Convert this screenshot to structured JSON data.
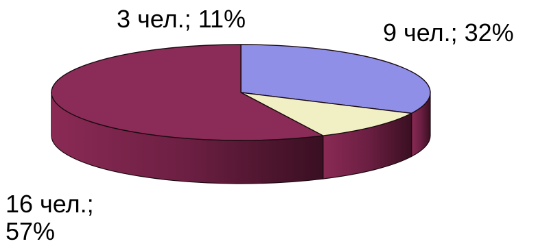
{
  "chart_data": {
    "type": "pie",
    "style": "3d-exploded-none",
    "title": "",
    "slices": [
      {
        "label": "9 чел.; 32%",
        "lines": [
          "9 чел.; 32%"
        ],
        "value": 9,
        "percent": 32,
        "color": "#8f8fe8"
      },
      {
        "label": "3 чел.; 11%",
        "lines": [
          "3 чел.; 11%"
        ],
        "value": 3,
        "percent": 11,
        "color": "#f1efc4"
      },
      {
        "label": "16 чел.; 57%",
        "lines": [
          "16 чел.;",
          "57%"
        ],
        "value": 16,
        "percent": 57,
        "color": "#8b2c58"
      }
    ],
    "legend": "none"
  }
}
